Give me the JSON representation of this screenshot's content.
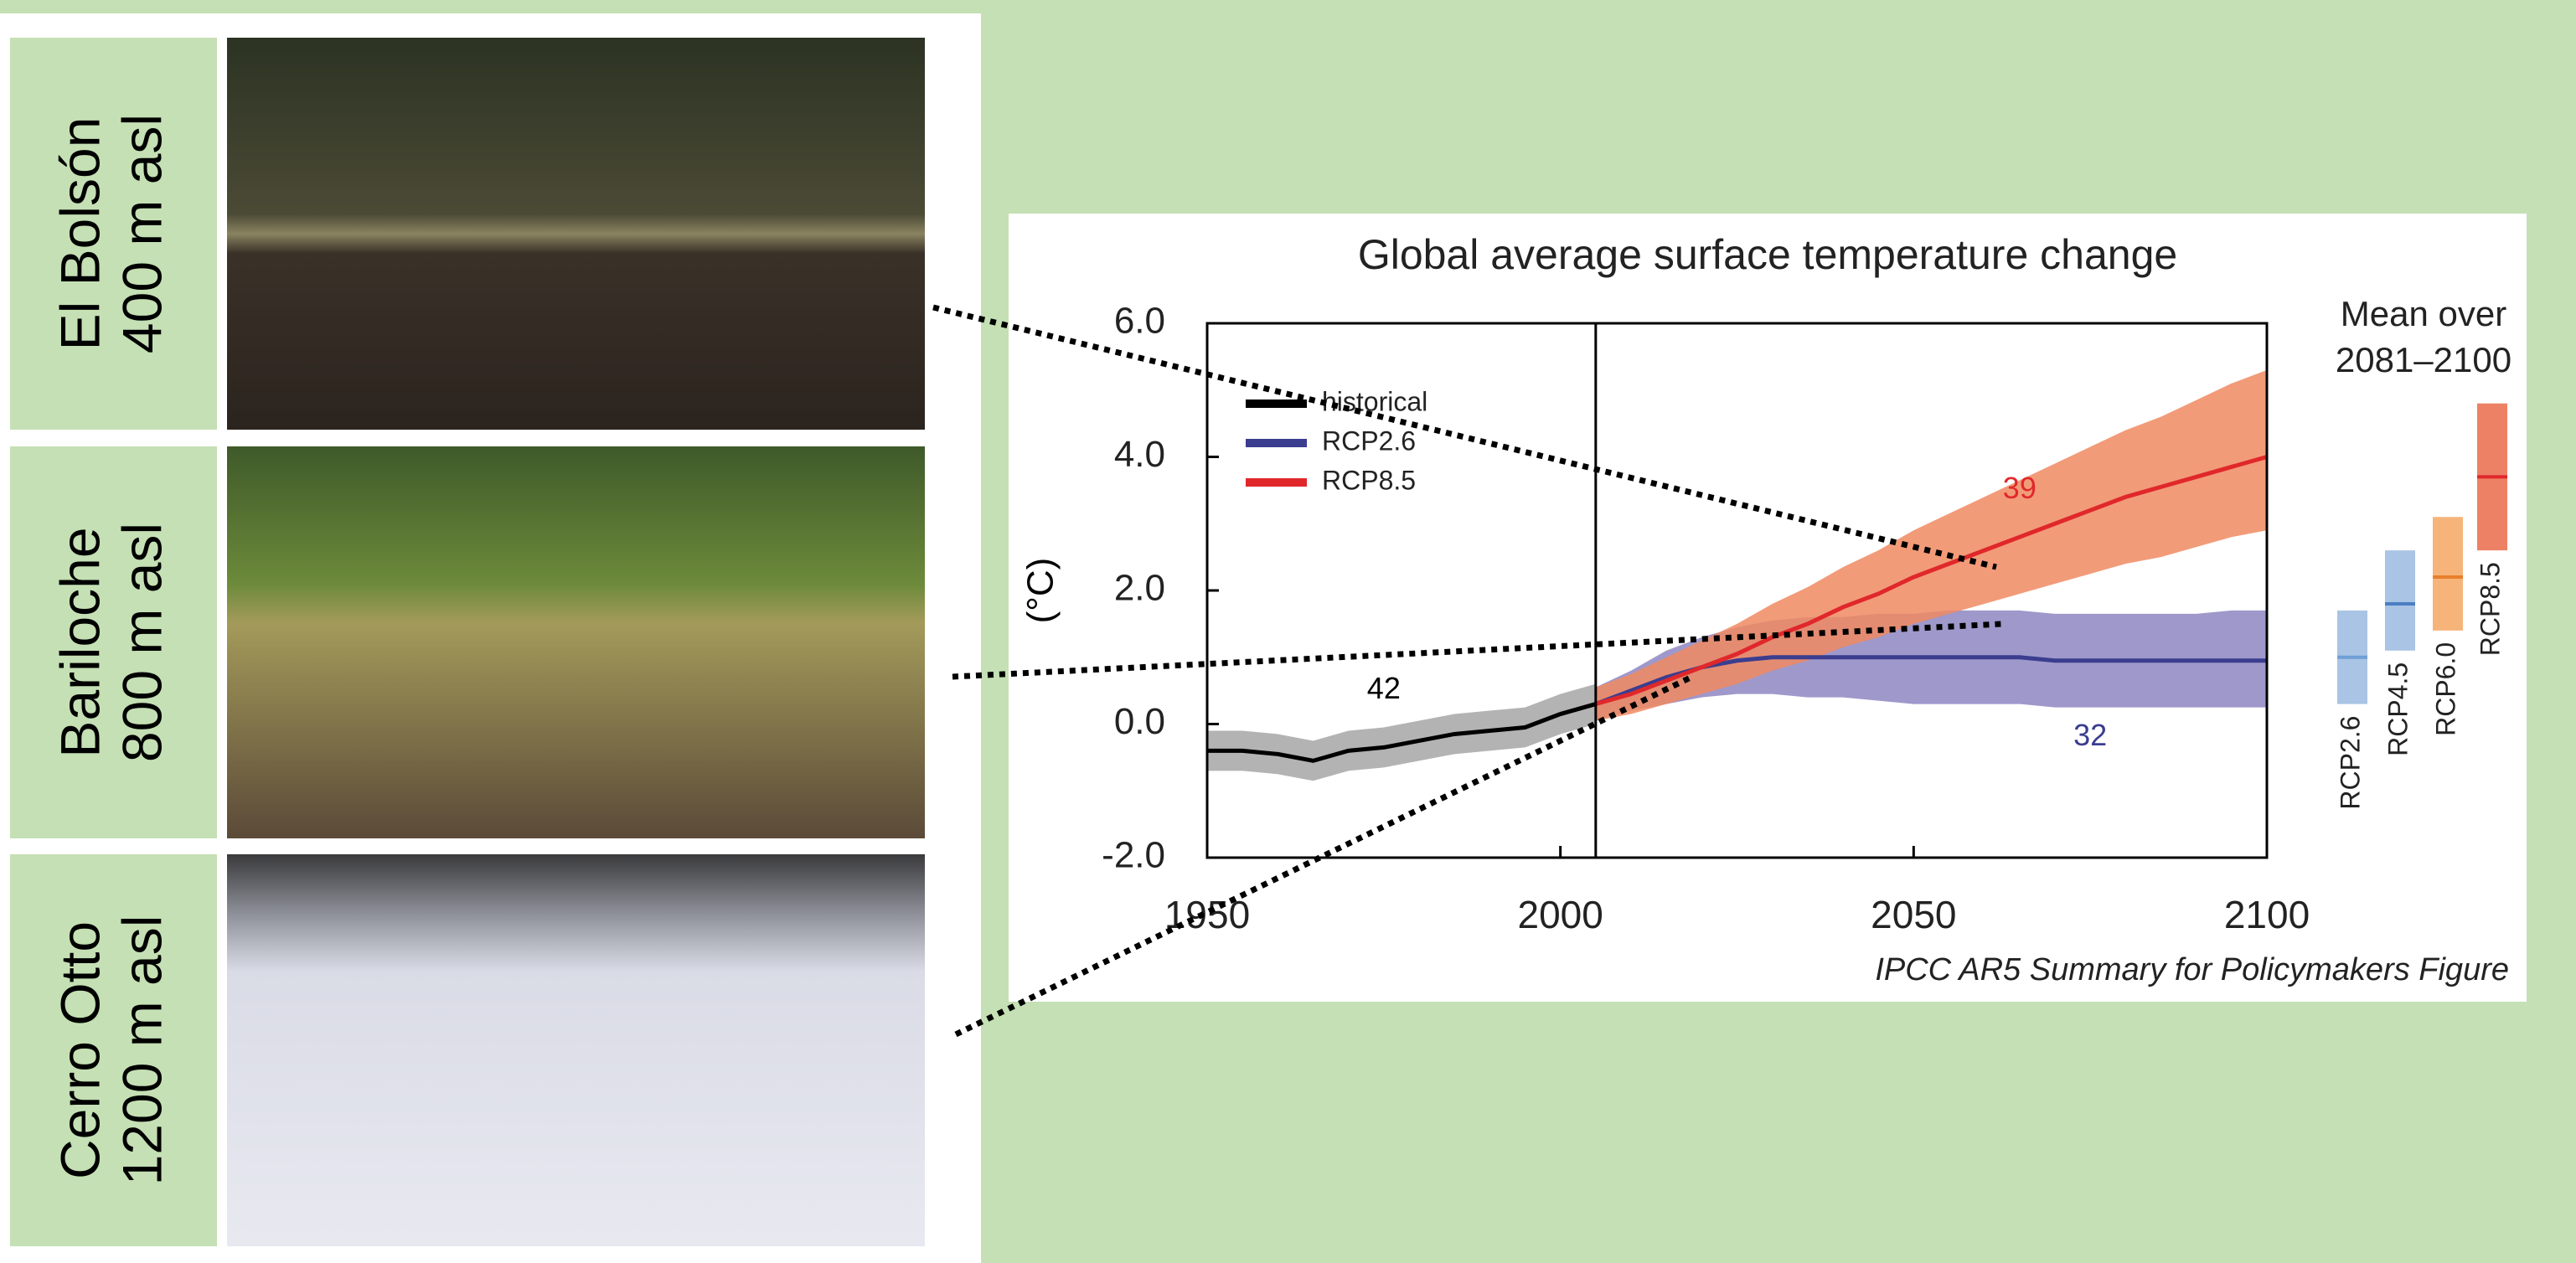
{
  "sites": [
    {
      "name": "El Bolsón",
      "elevation": "400 m asl"
    },
    {
      "name": "Bariloche",
      "elevation": "800 m asl"
    },
    {
      "name": "Cerro Otto",
      "elevation": "1200 m asl"
    }
  ],
  "chart_data": {
    "type": "line",
    "title": "Global average surface temperature change",
    "y_label": "(°C)",
    "caption": "IPCC AR5 Summary for Policymakers Figure",
    "xlim": [
      1950,
      2100
    ],
    "xticks": [
      1950,
      2000,
      2050,
      2100
    ],
    "ylim": [
      -2,
      6
    ],
    "yticks": [
      {
        "value": -2,
        "label": "-2.0"
      },
      {
        "value": 0,
        "label": "0.0"
      },
      {
        "value": 2,
        "label": "2.0"
      },
      {
        "value": 4,
        "label": "4.0"
      },
      {
        "value": 6,
        "label": "6.0"
      }
    ],
    "divider_x": 2005,
    "legend": "upper left",
    "series": [
      {
        "name": "historical",
        "color": "#000000",
        "band_color": "#a6a6a6",
        "x": [
          1950,
          1955,
          1960,
          1965,
          1970,
          1975,
          1980,
          1985,
          1990,
          1995,
          2000,
          2005
        ],
        "values": [
          -0.4,
          -0.4,
          -0.45,
          -0.55,
          -0.4,
          -0.35,
          -0.25,
          -0.15,
          -0.1,
          -0.05,
          0.15,
          0.3
        ],
        "lower": [
          -0.7,
          -0.7,
          -0.75,
          -0.85,
          -0.7,
          -0.65,
          -0.55,
          -0.45,
          -0.4,
          -0.35,
          -0.15,
          0.0
        ],
        "upper": [
          -0.1,
          -0.1,
          -0.15,
          -0.25,
          -0.1,
          -0.05,
          0.05,
          0.15,
          0.2,
          0.25,
          0.45,
          0.6
        ]
      },
      {
        "name": "RCP2.6",
        "color": "#3b3d8f",
        "band_color": "#8e86c2",
        "x": [
          2005,
          2010,
          2015,
          2020,
          2025,
          2030,
          2035,
          2040,
          2045,
          2050,
          2055,
          2060,
          2065,
          2070,
          2075,
          2080,
          2085,
          2090,
          2095,
          2100
        ],
        "values": [
          0.3,
          0.5,
          0.7,
          0.85,
          0.95,
          1.0,
          1.0,
          1.0,
          1.0,
          1.0,
          1.0,
          1.0,
          1.0,
          0.95,
          0.95,
          0.95,
          0.95,
          0.95,
          0.95,
          0.95
        ],
        "lower": [
          0.05,
          0.2,
          0.3,
          0.4,
          0.45,
          0.45,
          0.4,
          0.4,
          0.35,
          0.3,
          0.3,
          0.3,
          0.3,
          0.25,
          0.25,
          0.25,
          0.25,
          0.25,
          0.25,
          0.25
        ],
        "upper": [
          0.55,
          0.8,
          1.1,
          1.3,
          1.45,
          1.55,
          1.6,
          1.6,
          1.65,
          1.65,
          1.7,
          1.7,
          1.7,
          1.65,
          1.65,
          1.65,
          1.65,
          1.65,
          1.7,
          1.7
        ]
      },
      {
        "name": "RCP8.5",
        "color": "#e0282b",
        "band_color": "#f08a62",
        "x": [
          2005,
          2010,
          2015,
          2020,
          2025,
          2030,
          2035,
          2040,
          2045,
          2050,
          2055,
          2060,
          2065,
          2070,
          2075,
          2080,
          2085,
          2090,
          2095,
          2100
        ],
        "values": [
          0.3,
          0.45,
          0.65,
          0.85,
          1.05,
          1.3,
          1.5,
          1.75,
          1.95,
          2.2,
          2.4,
          2.6,
          2.8,
          3.0,
          3.2,
          3.4,
          3.55,
          3.7,
          3.85,
          4.0
        ],
        "lower": [
          0.05,
          0.15,
          0.3,
          0.45,
          0.6,
          0.8,
          0.95,
          1.15,
          1.3,
          1.5,
          1.65,
          1.8,
          1.95,
          2.1,
          2.25,
          2.4,
          2.5,
          2.65,
          2.8,
          2.9
        ],
        "upper": [
          0.55,
          0.75,
          1.0,
          1.25,
          1.5,
          1.8,
          2.05,
          2.35,
          2.6,
          2.9,
          3.15,
          3.4,
          3.65,
          3.9,
          4.15,
          4.4,
          4.6,
          4.85,
          5.1,
          5.3
        ]
      }
    ],
    "annotations": [
      {
        "text": "42",
        "x": 1975,
        "y": 0.5,
        "color": "#000000"
      },
      {
        "text": "39",
        "x": 2065,
        "y": 3.5,
        "color": "#e0282b"
      },
      {
        "text": "32",
        "x": 2075,
        "y": -0.2,
        "color": "#3b3d8f"
      }
    ],
    "mean_panel": {
      "title": [
        "Mean over",
        "2081–2100"
      ],
      "bars": [
        {
          "name": "RCP2.6",
          "color": "#a9c4e4",
          "line_color": "#6f9fd6",
          "low": 0.3,
          "mean": 1.0,
          "high": 1.7
        },
        {
          "name": "RCP4.5",
          "color": "#a9c4e4",
          "line_color": "#4a7fc2",
          "low": 1.1,
          "mean": 1.8,
          "high": 2.6
        },
        {
          "name": "RCP6.0",
          "color": "#f6b47a",
          "line_color": "#e8802c",
          "low": 1.4,
          "mean": 2.2,
          "high": 3.1
        },
        {
          "name": "RCP8.5",
          "color": "#ec8165",
          "line_color": "#e0282b",
          "low": 2.6,
          "mean": 3.7,
          "high": 4.8
        }
      ]
    }
  }
}
